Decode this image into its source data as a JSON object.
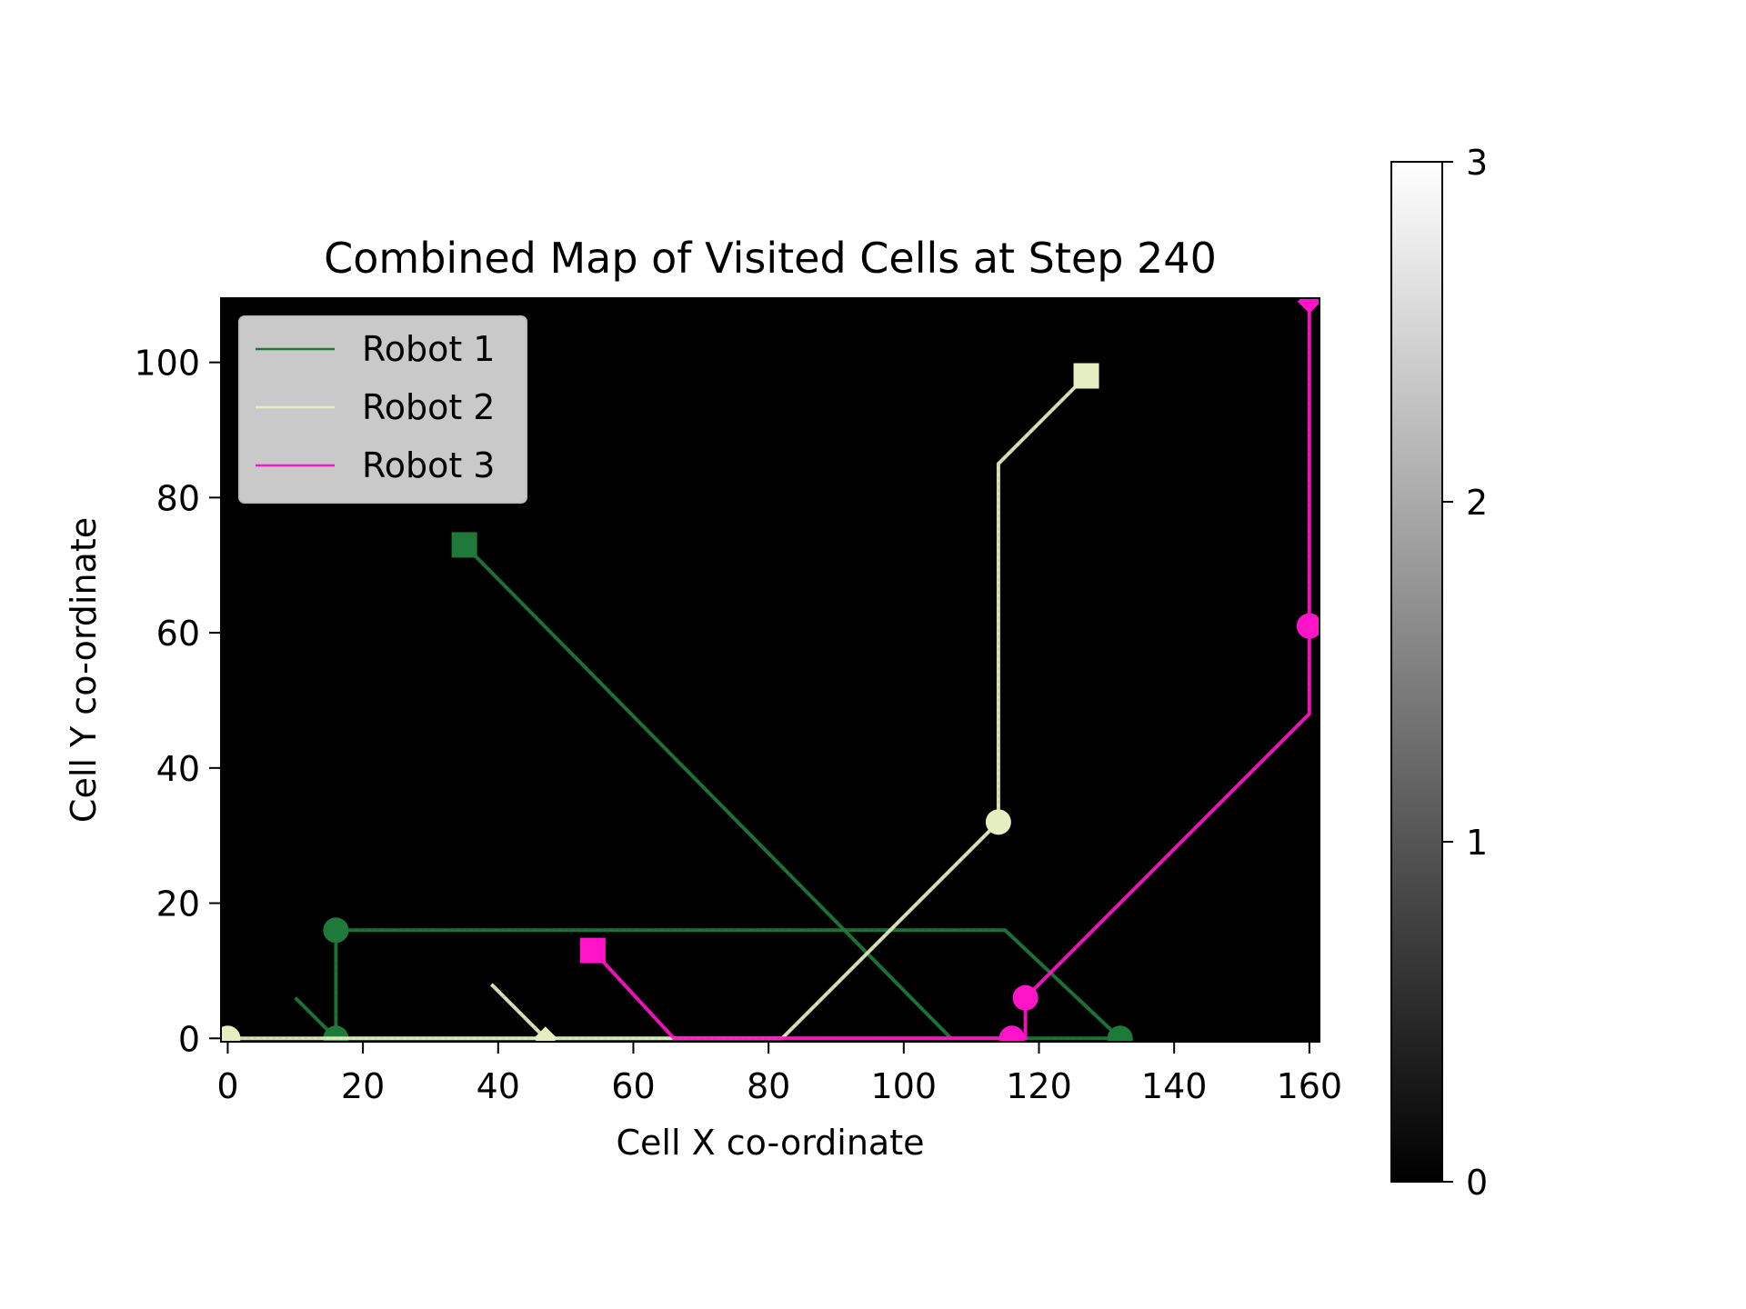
{
  "chart_data": {
    "type": "line",
    "title": "Combined Map of Visited Cells  at Step 240",
    "xlabel": "Cell X co-ordinate",
    "ylabel": "Cell Y co-ordinate",
    "xlim": [
      -1,
      161.5
    ],
    "ylim": [
      -0.5,
      109.5
    ],
    "xticks": [
      0,
      20,
      40,
      60,
      80,
      100,
      120,
      140,
      160
    ],
    "yticks": [
      0,
      20,
      40,
      60,
      80,
      100
    ],
    "background": "#000000",
    "grid": false,
    "legend_position": "upper left",
    "series": [
      {
        "name": "Robot 1",
        "color": "#1f7a3a",
        "paths": [
          [
            [
              35,
              73
            ],
            [
              107,
              0
            ]
          ],
          [
            [
              10,
              6
            ],
            [
              16,
              0
            ],
            [
              16,
              16
            ],
            [
              115,
              16
            ],
            [
              132,
              0
            ],
            [
              16,
              0
            ]
          ]
        ],
        "markers": [
          {
            "shape": "square",
            "x": 35,
            "y": 73
          },
          {
            "shape": "circle",
            "x": 16,
            "y": 16
          },
          {
            "shape": "circle",
            "x": 16,
            "y": 0
          },
          {
            "shape": "circle",
            "x": 132,
            "y": 0
          }
        ]
      },
      {
        "name": "Robot 2",
        "color": "#e4eec0",
        "paths": [
          [
            [
              127,
              98
            ],
            [
              114,
              85
            ],
            [
              114,
              32
            ],
            [
              82,
              0
            ],
            [
              0,
              0
            ]
          ],
          [
            [
              39,
              8
            ],
            [
              47,
              0
            ]
          ]
        ],
        "markers": [
          {
            "shape": "square",
            "x": 127,
            "y": 98
          },
          {
            "shape": "circle",
            "x": 114,
            "y": 32
          },
          {
            "shape": "circle",
            "x": 0,
            "y": 0
          },
          {
            "shape": "diamond",
            "x": 47,
            "y": 0
          }
        ]
      },
      {
        "name": "Robot 3",
        "color": "#ff14c8",
        "paths": [
          [
            [
              54,
              13
            ],
            [
              66,
              0
            ],
            [
              116,
              0
            ],
            [
              118,
              0
            ],
            [
              118,
              6
            ],
            [
              160,
              48
            ],
            [
              160,
              109
            ]
          ]
        ],
        "markers": [
          {
            "shape": "square",
            "x": 54,
            "y": 13
          },
          {
            "shape": "circle",
            "x": 116,
            "y": 0
          },
          {
            "shape": "circle",
            "x": 118,
            "y": 6
          },
          {
            "shape": "circle",
            "x": 160,
            "y": 61
          },
          {
            "shape": "diamond",
            "x": 160,
            "y": 109
          }
        ]
      }
    ],
    "colorbar": {
      "range": [
        0,
        3
      ],
      "ticks": [
        0,
        1,
        2,
        3
      ],
      "colormap": "gray"
    }
  }
}
